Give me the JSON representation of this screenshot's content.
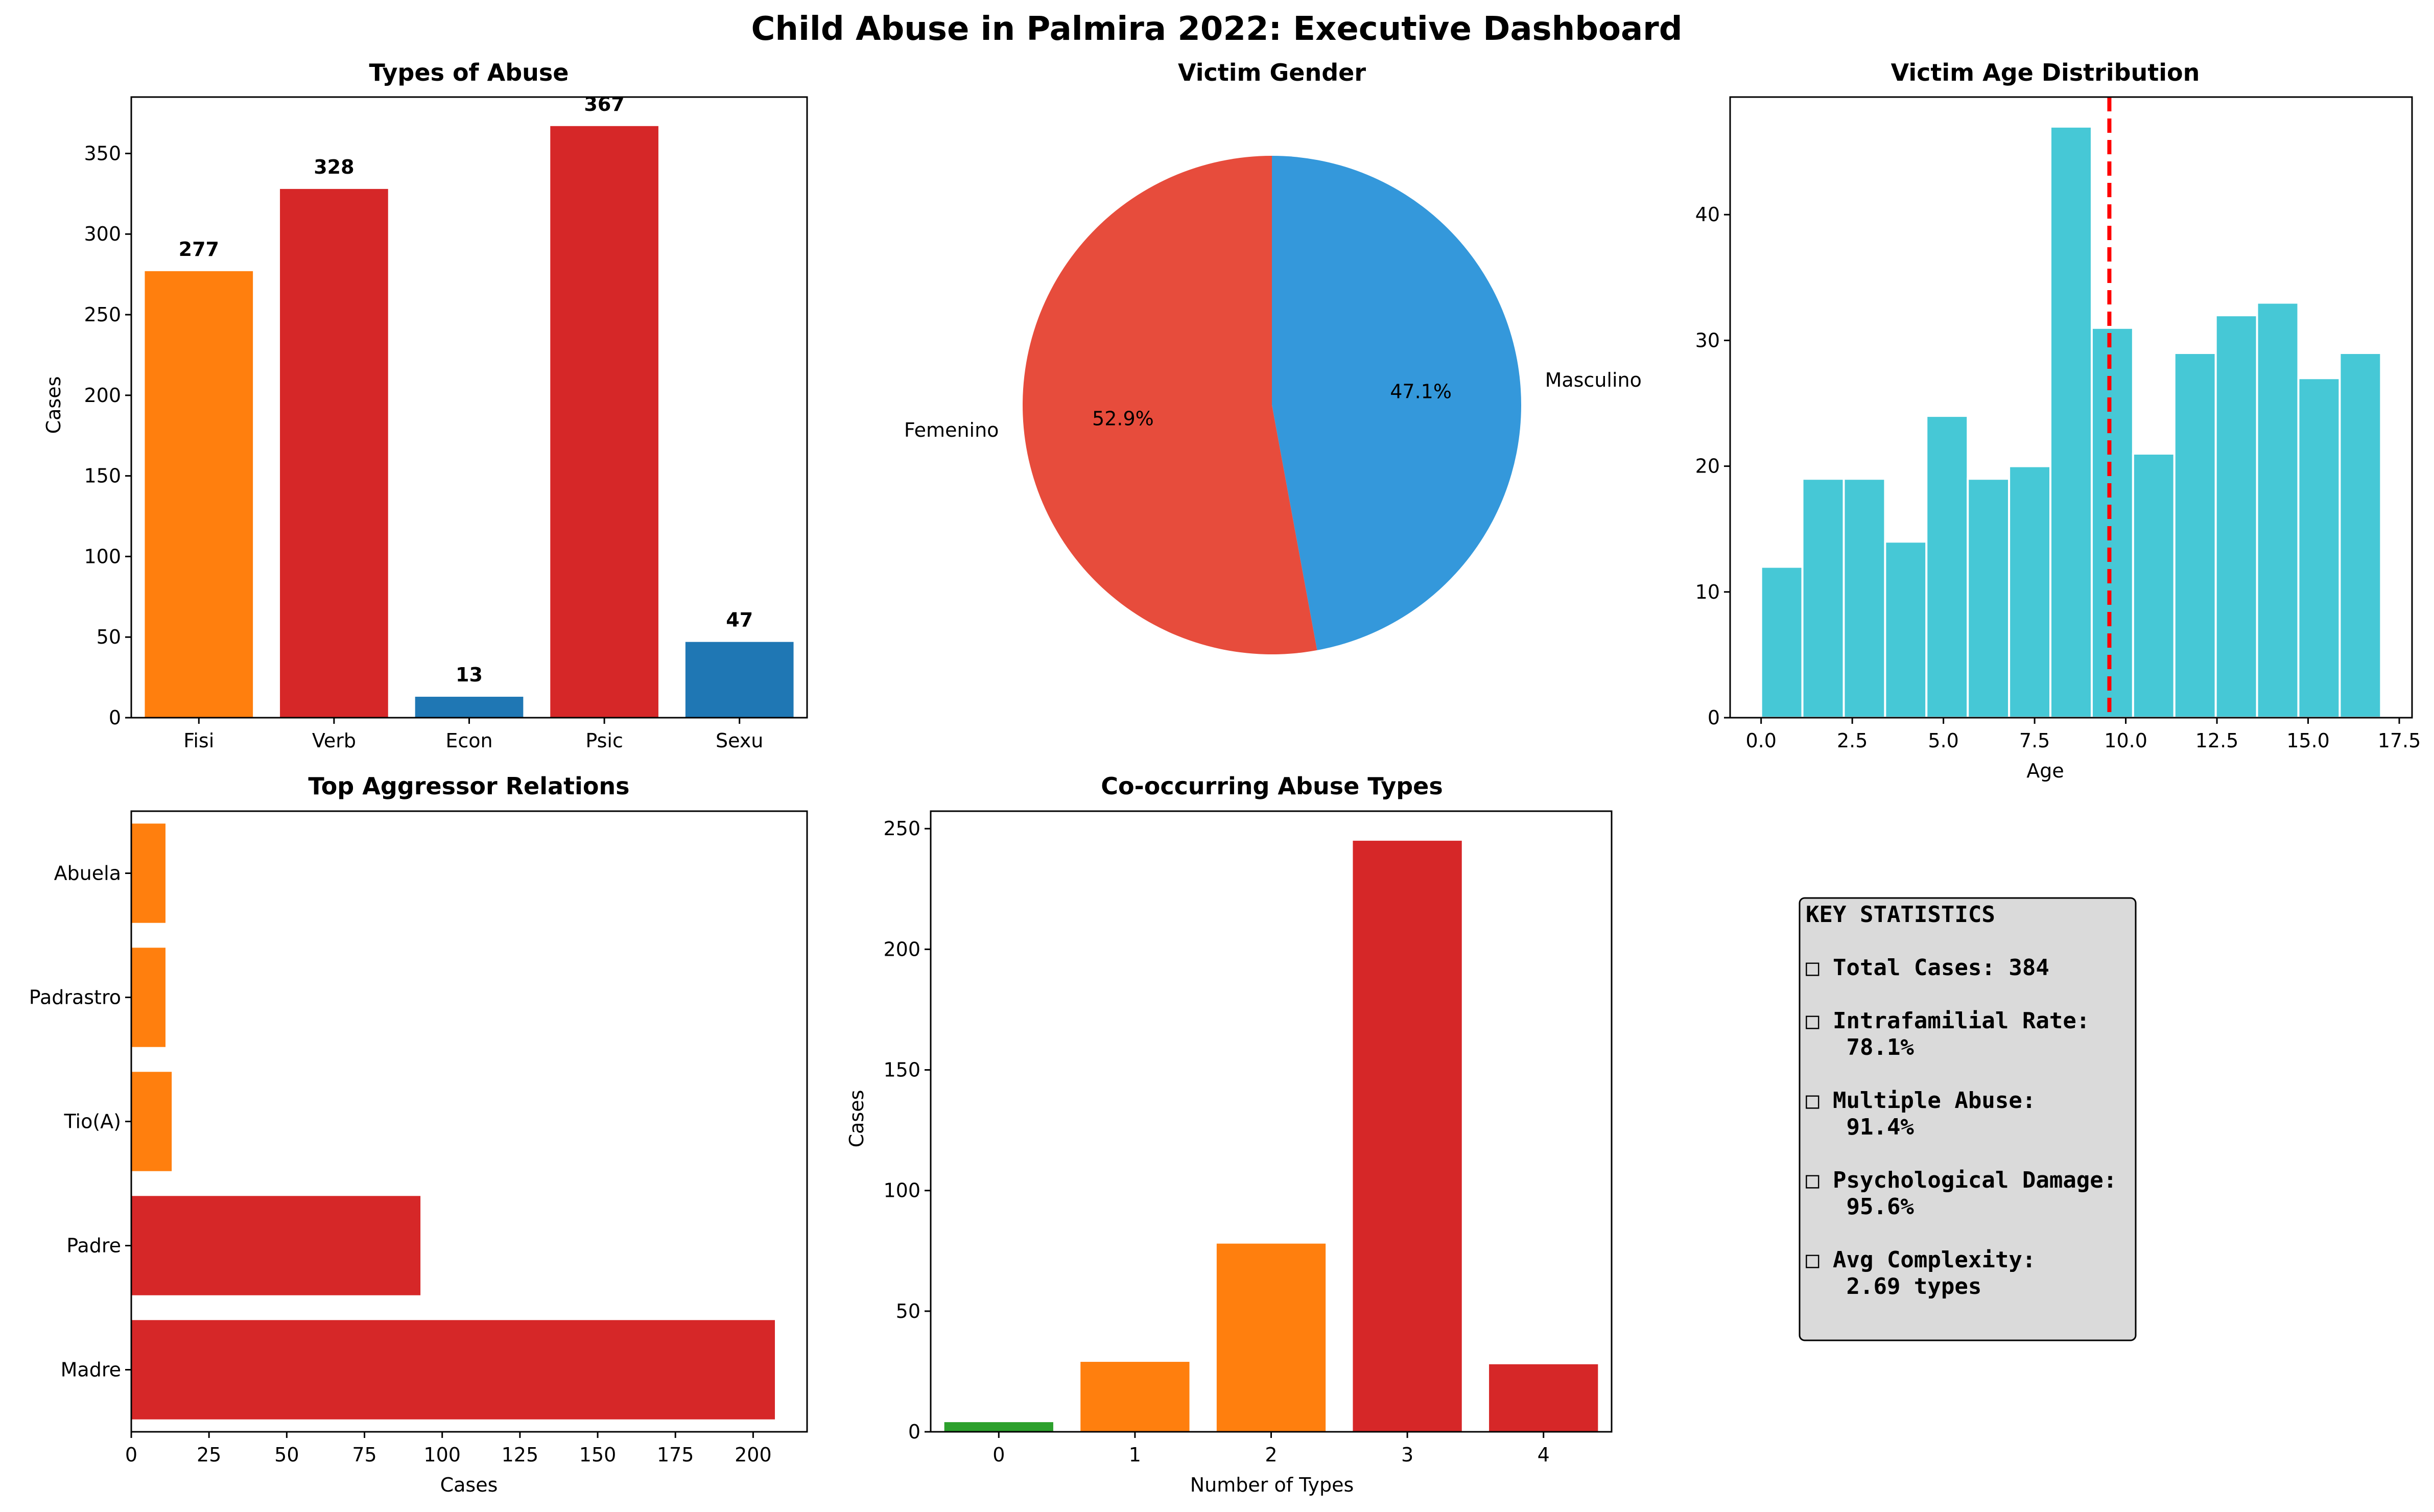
{
  "title": "Child Abuse in Palmira 2022: Executive Dashboard",
  "colors": {
    "orange": "#ff7f0e",
    "red": "#d62728",
    "blue": "#1f77b4",
    "green": "#2ca02c",
    "pie_female": "#e74c3c",
    "pie_male": "#3498db",
    "hist": "#46c8d6",
    "mean_line": "#ff0000",
    "stats_bg": "#dadada"
  },
  "chart_data": [
    {
      "type": "bar",
      "title": "Types of Abuse",
      "ylabel": "Cases",
      "xlabel": "",
      "categories": [
        "Fisi",
        "Verb",
        "Econ",
        "Psic",
        "Sexu"
      ],
      "values": [
        277,
        328,
        13,
        367,
        47
      ],
      "bar_colors": [
        "orange",
        "red",
        "blue",
        "red",
        "blue"
      ],
      "value_labels": [
        "277",
        "328",
        "13",
        "367",
        "47"
      ],
      "ylim": [
        0,
        385
      ],
      "yticks": [
        0,
        50,
        100,
        150,
        200,
        250,
        300,
        350
      ]
    },
    {
      "type": "pie",
      "title": "Victim Gender",
      "labels": [
        "Masculino",
        "Femenino"
      ],
      "values": [
        47.1,
        52.9
      ],
      "pct_labels": [
        "47.1%",
        "52.9%"
      ],
      "slice_colors": [
        "pie_male",
        "pie_female"
      ]
    },
    {
      "type": "bar",
      "subtype": "histogram",
      "title": "Victim Age Distribution",
      "xlabel": "Age",
      "ylabel": "",
      "bin_edges": [
        0,
        1.133,
        2.267,
        3.4,
        4.533,
        5.667,
        6.8,
        7.933,
        9.067,
        10.2,
        11.333,
        12.467,
        13.6,
        14.733,
        15.867,
        17
      ],
      "counts": [
        12,
        19,
        19,
        14,
        24,
        19,
        20,
        47,
        31,
        21,
        29,
        32,
        33,
        27,
        29
      ],
      "mean_line_x": 9.55,
      "xlim": [
        -0.85,
        17.85
      ],
      "ylim": [
        0,
        49.35
      ],
      "xticks": [
        0,
        2.5,
        5,
        7.5,
        10,
        12.5,
        15,
        17.5
      ],
      "xtick_labels": [
        "0.0",
        "2.5",
        "5.0",
        "7.5",
        "10.0",
        "12.5",
        "15.0",
        "17.5"
      ],
      "yticks": [
        0,
        10,
        20,
        30,
        40
      ]
    },
    {
      "type": "bar",
      "orientation": "horizontal",
      "title": "Top Aggressor Relations",
      "xlabel": "Cases",
      "ylabel": "",
      "categories": [
        "Madre",
        "Padre",
        "Tio(A)",
        "Padrastro",
        "Abuela"
      ],
      "values": [
        207,
        93,
        13,
        11,
        11
      ],
      "bar_colors": [
        "red",
        "red",
        "orange",
        "orange",
        "orange"
      ],
      "xlim": [
        0,
        217.35
      ],
      "xticks": [
        0,
        25,
        50,
        75,
        100,
        125,
        150,
        175,
        200
      ]
    },
    {
      "type": "bar",
      "title": "Co-occurring Abuse Types",
      "xlabel": "Number of Types",
      "ylabel": "Cases",
      "categories": [
        "0",
        "1",
        "2",
        "3",
        "4"
      ],
      "values": [
        4,
        29,
        78,
        245,
        28
      ],
      "bar_colors": [
        "green",
        "orange",
        "orange",
        "red",
        "red"
      ],
      "ylim": [
        0,
        257.25
      ],
      "yticks": [
        0,
        50,
        100,
        150,
        200,
        250
      ]
    }
  ],
  "stats_box": {
    "heading": "KEY STATISTICS",
    "glyph": "□",
    "items": [
      {
        "line1": "Total Cases: 384",
        "line2": ""
      },
      {
        "line1": "Intrafamilial Rate:",
        "line2": "78.1%"
      },
      {
        "line1": "Multiple Abuse:",
        "line2": "91.4%"
      },
      {
        "line1": "Psychological Damage:",
        "line2": "95.6%"
      },
      {
        "line1": "Avg Complexity:",
        "line2": "2.69 types"
      }
    ]
  }
}
